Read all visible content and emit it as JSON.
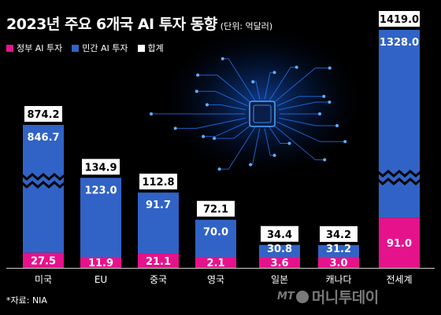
{
  "title": "2023년 주요 6개국 AI 투자 동향",
  "unit": "(단위: 억달러)",
  "legend": [
    {
      "label": "정부 AI 투자",
      "color": "#e6128c"
    },
    {
      "label": "민간 AI 투자",
      "color": "#3163c6"
    },
    {
      "label": "합계",
      "color": "#ffffff"
    }
  ],
  "source": "*자료: NIA",
  "logo": {
    "mt": "MT",
    "name": "머니투데이"
  },
  "chart_data": {
    "type": "bar",
    "stacked": true,
    "broken_axis": true,
    "categories": [
      "미국",
      "EU",
      "중국",
      "영국",
      "일본",
      "캐나다",
      "전세계"
    ],
    "series": [
      {
        "name": "정부 AI 투자",
        "color": "#e6128c",
        "values": [
          27.5,
          11.9,
          21.1,
          2.1,
          3.6,
          3.0,
          91.0
        ],
        "labels": [
          "27.5",
          "11.9",
          "21.1",
          "2.1",
          "3.6",
          "3.0",
          "91.0"
        ]
      },
      {
        "name": "민간 AI 투자",
        "color": "#3163c6",
        "values": [
          846.7,
          123.0,
          91.7,
          70.0,
          30.8,
          31.2,
          1328.0
        ],
        "labels": [
          "846.7",
          "123.0",
          "91.7",
          "70.0",
          "30.8",
          "31.2",
          "1328.0"
        ]
      }
    ],
    "totals": [
      874.2,
      134.9,
      112.8,
      72.1,
      34.4,
      34.2,
      1419.0
    ],
    "total_labels": [
      "874.2",
      "134.9",
      "112.8",
      "72.1",
      "34.4",
      "34.2",
      "1419.0"
    ]
  }
}
